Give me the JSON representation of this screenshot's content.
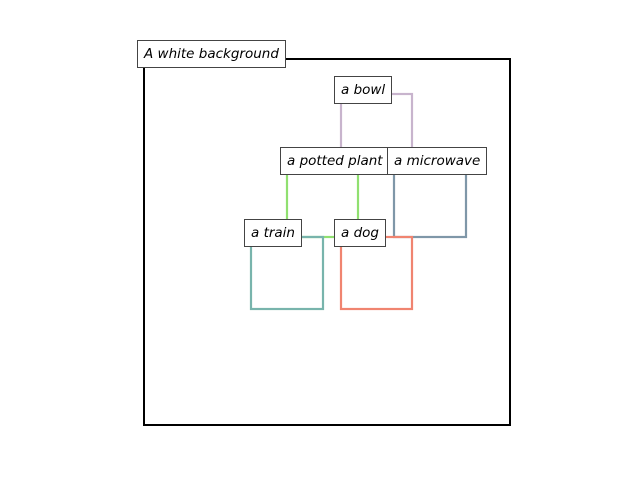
{
  "scene": {
    "label": "A white background",
    "frame_color": "#000000"
  },
  "objects": [
    {
      "id": "bowl",
      "label": "a bowl",
      "color": "#c8b4cd"
    },
    {
      "id": "potted-plant",
      "label": "a potted plant",
      "color": "#90e070"
    },
    {
      "id": "microwave",
      "label": "a microwave",
      "color": "#7f97a8"
    },
    {
      "id": "train",
      "label": "a train",
      "color": "#78b4ac"
    },
    {
      "id": "dog",
      "label": "a dog",
      "color": "#f08470"
    }
  ]
}
